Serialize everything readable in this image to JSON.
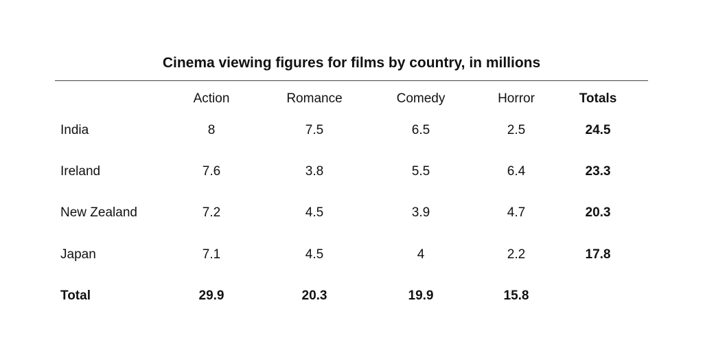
{
  "table": {
    "title": "Cinema viewing figures for films by country, in millions",
    "columns": [
      "Action",
      "Romance",
      "Comedy",
      "Horror",
      "Totals"
    ],
    "rows": [
      {
        "label": "India",
        "cells": [
          8,
          7.5,
          6.5,
          2.5,
          24.5
        ]
      },
      {
        "label": "Ireland",
        "cells": [
          7.6,
          3.8,
          5.5,
          6.4,
          23.3
        ]
      },
      {
        "label": "New Zealand",
        "cells": [
          7.2,
          4.5,
          3.9,
          4.7,
          20.3
        ]
      },
      {
        "label": "Japan",
        "cells": [
          7.1,
          4.5,
          4,
          2.2,
          17.8
        ]
      }
    ],
    "total_row": {
      "label": "Total",
      "cells": [
        29.9,
        20.3,
        19.9,
        15.8
      ]
    }
  }
}
